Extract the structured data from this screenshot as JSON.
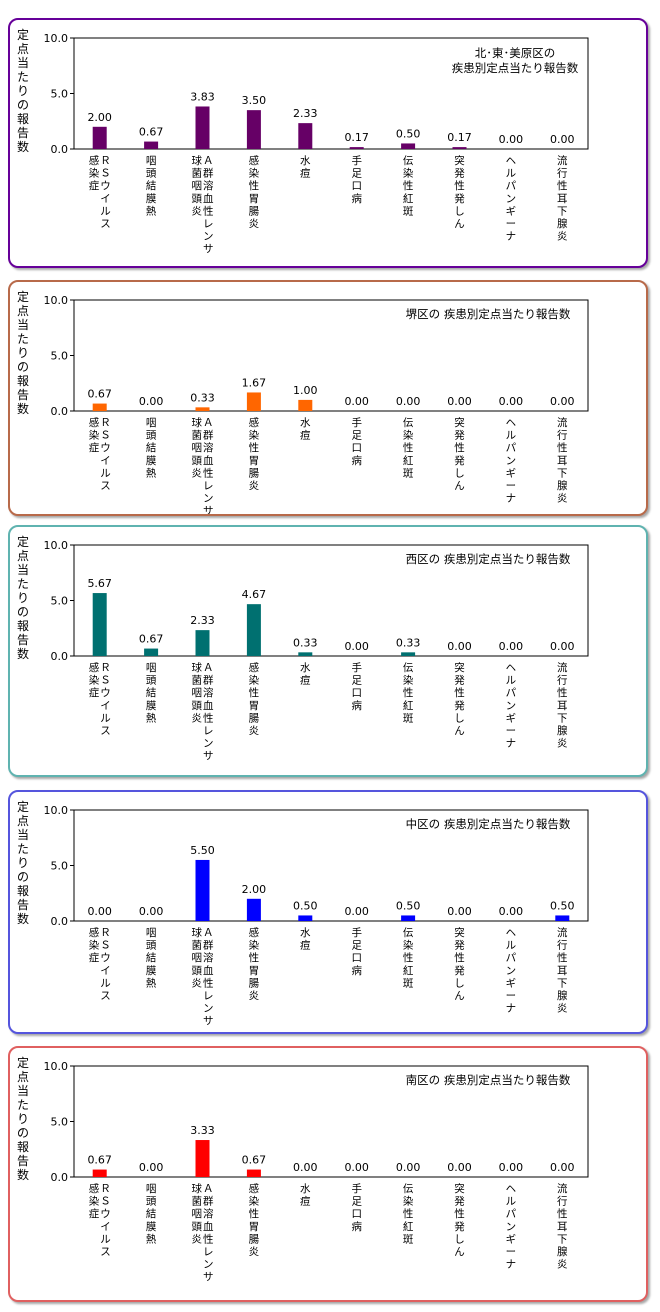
{
  "chart_data": [
    {
      "type": "bar",
      "title": "北･東･美原区の\n疾患別定点当たり報告数",
      "ylabel": "定点当たりの報告数",
      "ylim": [
        0,
        10
      ],
      "yticks": [
        "10.0",
        "5.0",
        "0.0"
      ],
      "categories": [
        "ＲＳウイルス\n感染症",
        "咽頭結膜熱",
        "Ａ群溶血性レンサ\n球菌咽頭炎",
        "感染性胃腸炎",
        "水痘",
        "手足口病",
        "伝染性紅斑",
        "突発性発しん",
        "ヘルパンギーナ",
        "流行性耳下腺炎"
      ],
      "values": [
        2.0,
        0.67,
        3.83,
        3.5,
        2.33,
        0.17,
        0.5,
        0.17,
        0.0,
        0.0
      ],
      "value_labels": [
        "2.00",
        "0.67",
        "3.83",
        "3.50",
        "2.33",
        "0.17",
        "0.50",
        "0.17",
        "0.00",
        "0.00"
      ],
      "color": "#660066",
      "border_color": "#660099"
    },
    {
      "type": "bar",
      "title": "堺区の 疾患別定点当たり報告数",
      "ylabel": "定点当たりの報告数",
      "ylim": [
        0,
        10
      ],
      "yticks": [
        "10.0",
        "5.0",
        "0.0"
      ],
      "categories": [
        "ＲＳウイルス\n感染症",
        "咽頭結膜熱",
        "Ａ群溶血性レンサ\n球菌咽頭炎",
        "感染性胃腸炎",
        "水痘",
        "手足口病",
        "伝染性紅斑",
        "突発性発しん",
        "ヘルパンギーナ",
        "流行性耳下腺炎"
      ],
      "values": [
        0.67,
        0.0,
        0.33,
        1.67,
        1.0,
        0.0,
        0.0,
        0.0,
        0.0,
        0.0
      ],
      "value_labels": [
        "0.67",
        "0.00",
        "0.33",
        "1.67",
        "1.00",
        "0.00",
        "0.00",
        "0.00",
        "0.00",
        "0.00"
      ],
      "color": "#ff6600",
      "border_color": "#b86a4a"
    },
    {
      "type": "bar",
      "title": "西区の 疾患別定点当たり報告数",
      "ylabel": "定点当たりの報告数",
      "ylim": [
        0,
        10
      ],
      "yticks": [
        "10.0",
        "5.0",
        "0.0"
      ],
      "categories": [
        "ＲＳウイルス\n感染症",
        "咽頭結膜熱",
        "Ａ群溶血性レンサ\n球菌咽頭炎",
        "感染性胃腸炎",
        "水痘",
        "手足口病",
        "伝染性紅斑",
        "突発性発しん",
        "ヘルパンギーナ",
        "流行性耳下腺炎"
      ],
      "values": [
        5.67,
        0.67,
        2.33,
        4.67,
        0.33,
        0.0,
        0.33,
        0.0,
        0.0,
        0.0
      ],
      "value_labels": [
        "5.67",
        "0.67",
        "2.33",
        "4.67",
        "0.33",
        "0.00",
        "0.33",
        "0.00",
        "0.00",
        "0.00"
      ],
      "color": "#007070",
      "border_color": "#5fb3b0"
    },
    {
      "type": "bar",
      "title": "中区の 疾患別定点当たり報告数",
      "ylabel": "定点当たりの報告数",
      "ylim": [
        0,
        10
      ],
      "yticks": [
        "10.0",
        "5.0",
        "0.0"
      ],
      "categories": [
        "ＲＳウイルス\n感染症",
        "咽頭結膜熱",
        "Ａ群溶血性レンサ\n球菌咽頭炎",
        "感染性胃腸炎",
        "水痘",
        "手足口病",
        "伝染性紅斑",
        "突発性発しん",
        "ヘルパンギーナ",
        "流行性耳下腺炎"
      ],
      "values": [
        0.0,
        0.0,
        5.5,
        2.0,
        0.5,
        0.0,
        0.5,
        0.0,
        0.0,
        0.5
      ],
      "value_labels": [
        "0.00",
        "0.00",
        "5.50",
        "2.00",
        "0.50",
        "0.00",
        "0.50",
        "0.00",
        "0.00",
        "0.50"
      ],
      "color": "#0000ff",
      "border_color": "#5555dd"
    },
    {
      "type": "bar",
      "title": "南区の 疾患別定点当たり報告数",
      "ylabel": "定点当たりの報告数",
      "ylim": [
        0,
        10
      ],
      "yticks": [
        "10.0",
        "5.0",
        "0.0"
      ],
      "categories": [
        "ＲＳウイルス\n感染症",
        "咽頭結膜熱",
        "Ａ群溶血性レンサ\n球菌咽頭炎",
        "感染性胃腸炎",
        "水痘",
        "手足口病",
        "伝染性紅斑",
        "突発性発しん",
        "ヘルパンギーナ",
        "流行性耳下腺炎"
      ],
      "values": [
        0.67,
        0.0,
        3.33,
        0.67,
        0.0,
        0.0,
        0.0,
        0.0,
        0.0,
        0.0
      ],
      "value_labels": [
        "0.67",
        "0.00",
        "3.33",
        "0.67",
        "0.00",
        "0.00",
        "0.00",
        "0.00",
        "0.00",
        "0.00"
      ],
      "color": "#ff0000",
      "border_color": "#e06060"
    }
  ]
}
